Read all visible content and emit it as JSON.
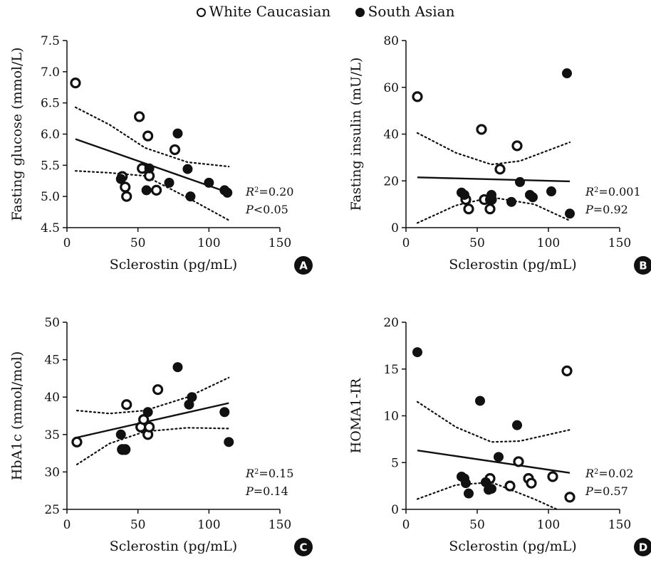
{
  "legend": {
    "white": "White Caucasian",
    "south": "South Asian"
  },
  "chart_data": [
    {
      "type": "scatter",
      "panel": "A",
      "xlabel": "Sclerostin (pg/mL)",
      "ylabel": "Fasting glucose (mmol/L)",
      "xlim": [
        0,
        150
      ],
      "ylim": [
        4.5,
        7.5
      ],
      "xticks": [
        0,
        50,
        100,
        150
      ],
      "yticks": [
        4.5,
        5.0,
        5.5,
        6.0,
        6.5,
        7.0,
        7.5
      ],
      "ydecimals": 1,
      "r2_label": "R",
      "r2_value": "=0.20",
      "p_label": "P",
      "p_value": "<0.05",
      "series": [
        {
          "name": "White Caucasian",
          "points": [
            [
              6,
              6.82
            ],
            [
              39,
              5.32
            ],
            [
              41,
              5.15
            ],
            [
              42,
              5.0
            ],
            [
              51,
              6.28
            ],
            [
              53,
              5.45
            ],
            [
              57,
              5.97
            ],
            [
              58,
              5.33
            ],
            [
              63,
              5.1
            ],
            [
              76,
              5.75
            ]
          ]
        },
        {
          "name": "South Asian",
          "points": [
            [
              38,
              5.28
            ],
            [
              56,
              5.1
            ],
            [
              58,
              5.45
            ],
            [
              72,
              5.22
            ],
            [
              78,
              6.01
            ],
            [
              85,
              5.44
            ],
            [
              87,
              5.0
            ],
            [
              100,
              5.22
            ],
            [
              111,
              5.1
            ],
            [
              113,
              5.06
            ]
          ]
        }
      ],
      "fit": {
        "x0": 6,
        "y0": 5.92,
        "x1": 114,
        "y1": 5.06
      },
      "ci_upper": [
        [
          6,
          6.43
        ],
        [
          30,
          6.15
        ],
        [
          55,
          5.78
        ],
        [
          85,
          5.55
        ],
        [
          114,
          5.48
        ]
      ],
      "ci_lower": [
        [
          6,
          5.41
        ],
        [
          30,
          5.38
        ],
        [
          55,
          5.33
        ],
        [
          85,
          4.98
        ],
        [
          114,
          4.62
        ]
      ]
    },
    {
      "type": "scatter",
      "panel": "B",
      "xlabel": "Sclerostin (pg/mL)",
      "ylabel": "Fasting insulin (mU/L)",
      "xlim": [
        0,
        150
      ],
      "ylim": [
        0,
        80
      ],
      "xticks": [
        0,
        50,
        100,
        150
      ],
      "yticks": [
        0,
        20,
        40,
        60,
        80
      ],
      "ydecimals": 0,
      "r2_label": "R",
      "r2_value": "=0.001",
      "p_label": "P",
      "p_value": "=0.92",
      "series": [
        {
          "name": "White Caucasian",
          "points": [
            [
              8,
              56
            ],
            [
              42,
              12
            ],
            [
              44,
              8
            ],
            [
              53,
              42
            ],
            [
              55,
              12
            ],
            [
              59,
              8
            ],
            [
              60,
              12
            ],
            [
              66,
              25
            ],
            [
              78,
              35
            ]
          ]
        },
        {
          "name": "South Asian",
          "points": [
            [
              39,
              15
            ],
            [
              41,
              14
            ],
            [
              59,
              12
            ],
            [
              60,
              14
            ],
            [
              74,
              11
            ],
            [
              80,
              19.5
            ],
            [
              87,
              14
            ],
            [
              89,
              13
            ],
            [
              102,
              15.5
            ],
            [
              113,
              66
            ],
            [
              115,
              6
            ]
          ]
        }
      ],
      "fit": {
        "x0": 8,
        "y0": 21.5,
        "x1": 115,
        "y1": 19.8
      },
      "ci_upper": [
        [
          8,
          40.5
        ],
        [
          35,
          32
        ],
        [
          60,
          27
        ],
        [
          80,
          28.5
        ],
        [
          115,
          36.5
        ]
      ],
      "ci_lower": [
        [
          8,
          2
        ],
        [
          35,
          9.5
        ],
        [
          60,
          13
        ],
        [
          90,
          10
        ],
        [
          115,
          3
        ]
      ]
    },
    {
      "type": "scatter",
      "panel": "C",
      "xlabel": "Sclerostin (pg/mL)",
      "ylabel": "HbA1c (mmol/mol)",
      "xlim": [
        0,
        150
      ],
      "ylim": [
        25,
        50
      ],
      "xticks": [
        0,
        50,
        100,
        150
      ],
      "yticks": [
        25,
        30,
        35,
        40,
        45,
        50
      ],
      "ydecimals": 0,
      "r2_label": "R",
      "r2_value": "=0.15",
      "p_label": "P",
      "p_value": "=0.14",
      "series": [
        {
          "name": "White Caucasian",
          "points": [
            [
              7,
              34
            ],
            [
              39,
              33
            ],
            [
              41,
              33
            ],
            [
              42,
              39
            ],
            [
              52,
              36
            ],
            [
              54,
              37
            ],
            [
              57,
              35
            ],
            [
              58,
              36
            ],
            [
              64,
              41
            ]
          ]
        },
        {
          "name": "South Asian",
          "points": [
            [
              38,
              35
            ],
            [
              40,
              33
            ],
            [
              57,
              38
            ],
            [
              78,
              44
            ],
            [
              86,
              39
            ],
            [
              88,
              40
            ],
            [
              111,
              38
            ],
            [
              114,
              34
            ]
          ]
        }
      ],
      "fit": {
        "x0": 7,
        "y0": 34.6,
        "x1": 114,
        "y1": 39.2
      },
      "ci_upper": [
        [
          7,
          38.2
        ],
        [
          30,
          37.8
        ],
        [
          55,
          38.2
        ],
        [
          85,
          40
        ],
        [
          114,
          42.6
        ]
      ],
      "ci_lower": [
        [
          7,
          31
        ],
        [
          30,
          33.8
        ],
        [
          55,
          35.4
        ],
        [
          85,
          35.9
        ],
        [
          114,
          35.8
        ]
      ]
    },
    {
      "type": "scatter",
      "panel": "D",
      "xlabel": "Sclerostin (pg/mL)",
      "ylabel": "HOMA1-IR",
      "xlim": [
        0,
        150
      ],
      "ylim": [
        0,
        20
      ],
      "xticks": [
        0,
        50,
        100,
        150
      ],
      "yticks": [
        0,
        5,
        10,
        15,
        20
      ],
      "ydecimals": 0,
      "r2_label": "R",
      "r2_value": "=0.02",
      "p_label": "P",
      "p_value": "=0.57",
      "series": [
        {
          "name": "White Caucasian",
          "points": [
            [
              59,
              3.3
            ],
            [
              73,
              2.5
            ],
            [
              79,
              5.1
            ],
            [
              86,
              3.3
            ],
            [
              88,
              2.8
            ],
            [
              103,
              3.5
            ],
            [
              113,
              14.8
            ],
            [
              115,
              1.3
            ]
          ]
        },
        {
          "name": "South Asian",
          "points": [
            [
              8,
              16.8
            ],
            [
              39,
              3.5
            ],
            [
              41,
              3.3
            ],
            [
              42,
              2.8
            ],
            [
              44,
              1.7
            ],
            [
              52,
              11.6
            ],
            [
              56,
              2.9
            ],
            [
              58,
              2.1
            ],
            [
              60,
              2.2
            ],
            [
              65,
              5.6
            ],
            [
              78,
              9.0
            ]
          ]
        }
      ],
      "fit": {
        "x0": 8,
        "y0": 6.3,
        "x1": 115,
        "y1": 3.9
      },
      "ci_upper": [
        [
          8,
          11.5
        ],
        [
          35,
          8.8
        ],
        [
          60,
          7.2
        ],
        [
          80,
          7.3
        ],
        [
          115,
          8.5
        ]
      ],
      "ci_lower": [
        [
          8,
          1.1
        ],
        [
          35,
          2.6
        ],
        [
          60,
          2.9
        ],
        [
          90,
          1.1
        ],
        [
          106,
          0
        ]
      ]
    }
  ]
}
